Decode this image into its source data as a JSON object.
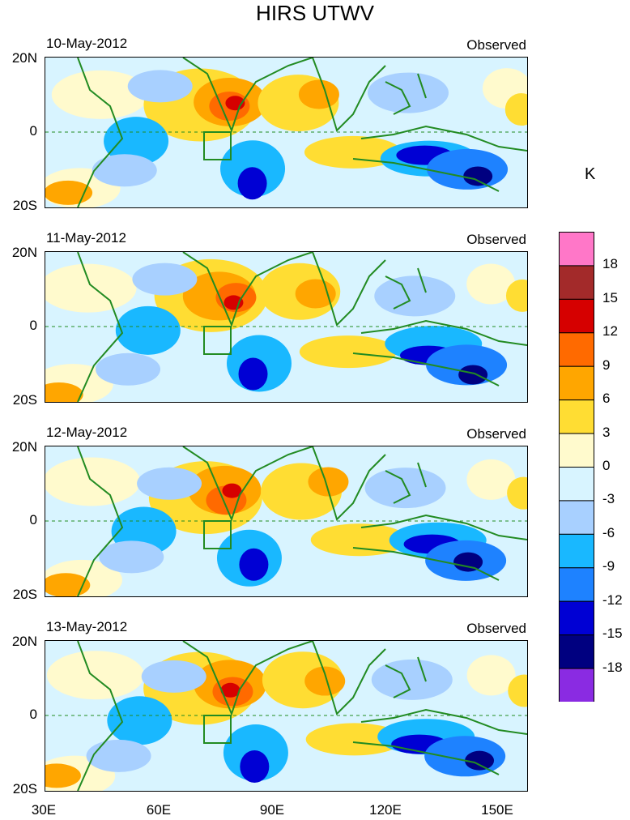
{
  "title": "HIRS UTWV",
  "panels": [
    {
      "date": "10-May-2012",
      "label": "Observed"
    },
    {
      "date": "11-May-2012",
      "label": "Observed"
    },
    {
      "date": "12-May-2012",
      "label": "Observed"
    },
    {
      "date": "13-May-2012",
      "label": "Observed"
    }
  ],
  "lat_labels": [
    "20N",
    "0",
    "20S"
  ],
  "lon_labels": [
    "30E",
    "60E",
    "90E",
    "120E",
    "150E"
  ],
  "colorbar": {
    "unit": "K",
    "labels": [
      "18",
      "15",
      "12",
      "9",
      "6",
      "3",
      "0",
      "-3",
      "-6",
      "-9",
      "-12",
      "-15",
      "-18"
    ],
    "colors": [
      "#ff77c8",
      "#a32a2a",
      "#d60000",
      "#ff6a00",
      "#ffa600",
      "#ffdd33",
      "#fffacd",
      "#d8f4ff",
      "#a8d0ff",
      "#19b8ff",
      "#1e82ff",
      "#0000d4",
      "#000080",
      "#8a2be2"
    ]
  }
}
